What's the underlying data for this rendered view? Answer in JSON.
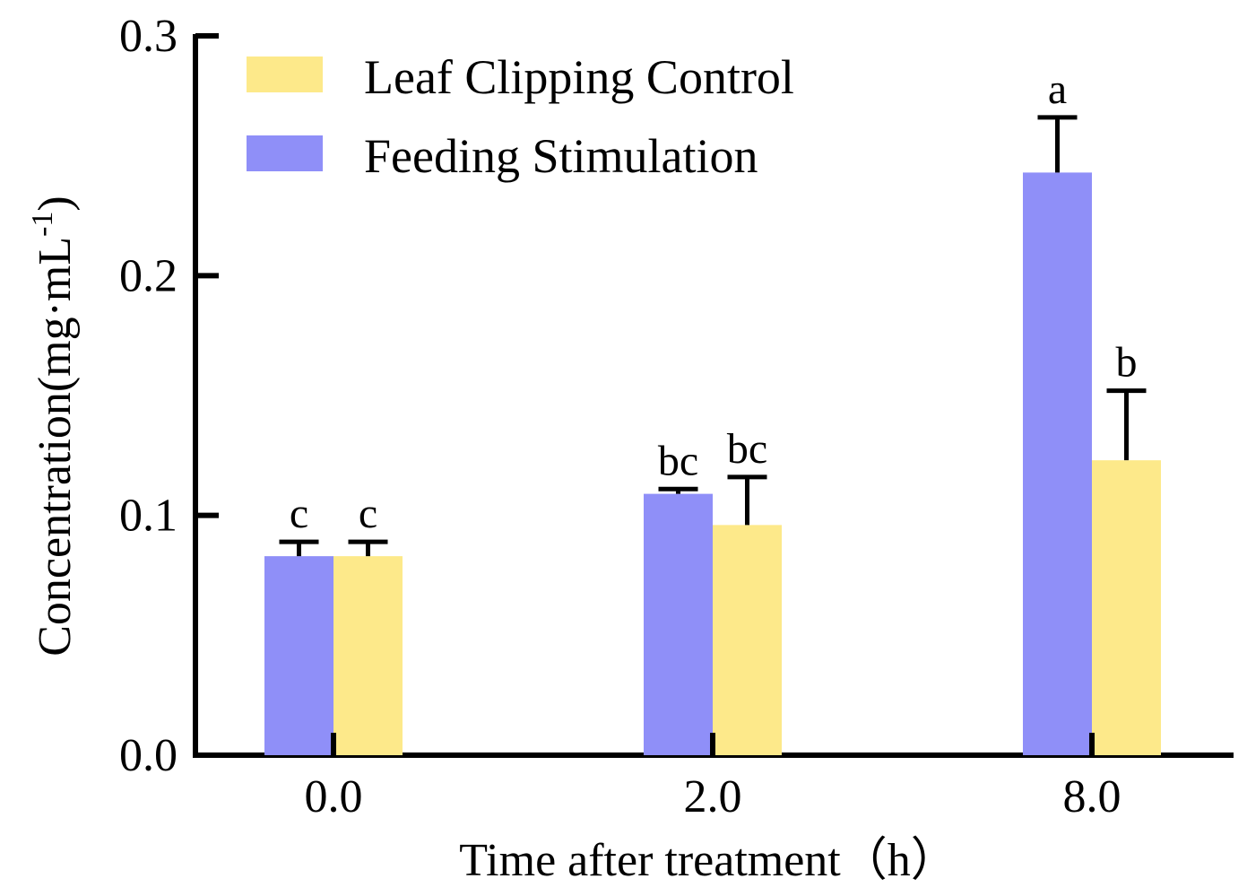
{
  "chart_data": {
    "type": "bar",
    "title": "",
    "xlabel": "Time after treatment（h）",
    "ylabel": "Concentration(mg·mL",
    "ylabel_superscript": "-1",
    "ylabel_close": ")",
    "categories": [
      "0.0",
      "2.0",
      "8.0"
    ],
    "ylim": [
      0,
      0.3
    ],
    "yticks": [
      "0.0",
      "0.1",
      "0.2",
      "0.3"
    ],
    "series": [
      {
        "name": "Feeding Stimulation",
        "color": "#8f8ff8",
        "values": [
          0.083,
          0.109,
          0.243
        ],
        "errors": [
          0.006,
          0.002,
          0.023
        ],
        "labels": [
          "c",
          "bc",
          "a"
        ]
      },
      {
        "name": "Leaf Clipping Control",
        "color": "#fde98a",
        "values": [
          0.083,
          0.096,
          0.123
        ],
        "errors": [
          0.006,
          0.02,
          0.029
        ],
        "labels": [
          "c",
          "bc",
          "b"
        ]
      }
    ],
    "legend": [
      {
        "name": "Leaf Clipping Control",
        "color": "#fde98a"
      },
      {
        "name": "Feeding Stimulation",
        "color": "#8f8ff8"
      }
    ],
    "legend_position": "top-left",
    "grid": false
  }
}
